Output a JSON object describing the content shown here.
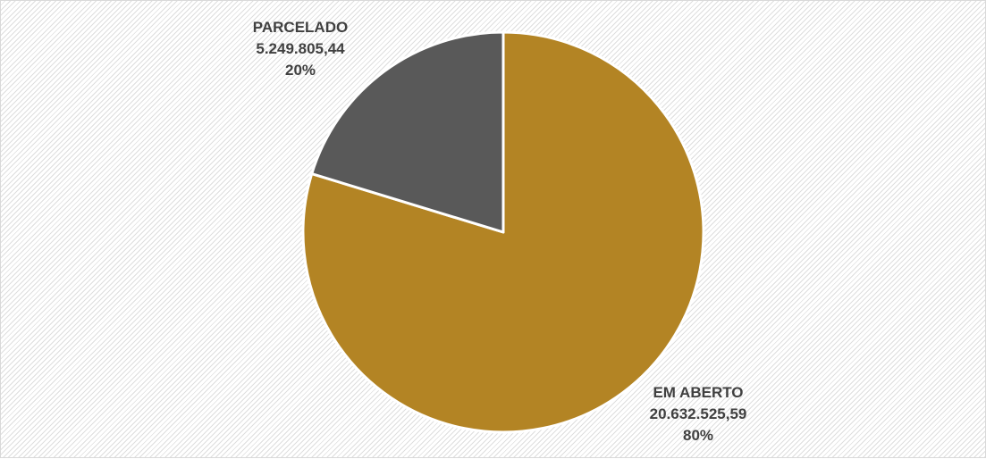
{
  "chart_data": {
    "type": "pie",
    "title": "",
    "slices": [
      {
        "category": "EM ABERTO",
        "value": 20632525.59,
        "value_label": "20.632.525,59",
        "percent_label": "80%",
        "color": "#B38424"
      },
      {
        "category": "PARCELADO",
        "value": 5249805.44,
        "value_label": "5.249.805,44",
        "percent_label": "20%",
        "color": "#595959"
      }
    ]
  }
}
